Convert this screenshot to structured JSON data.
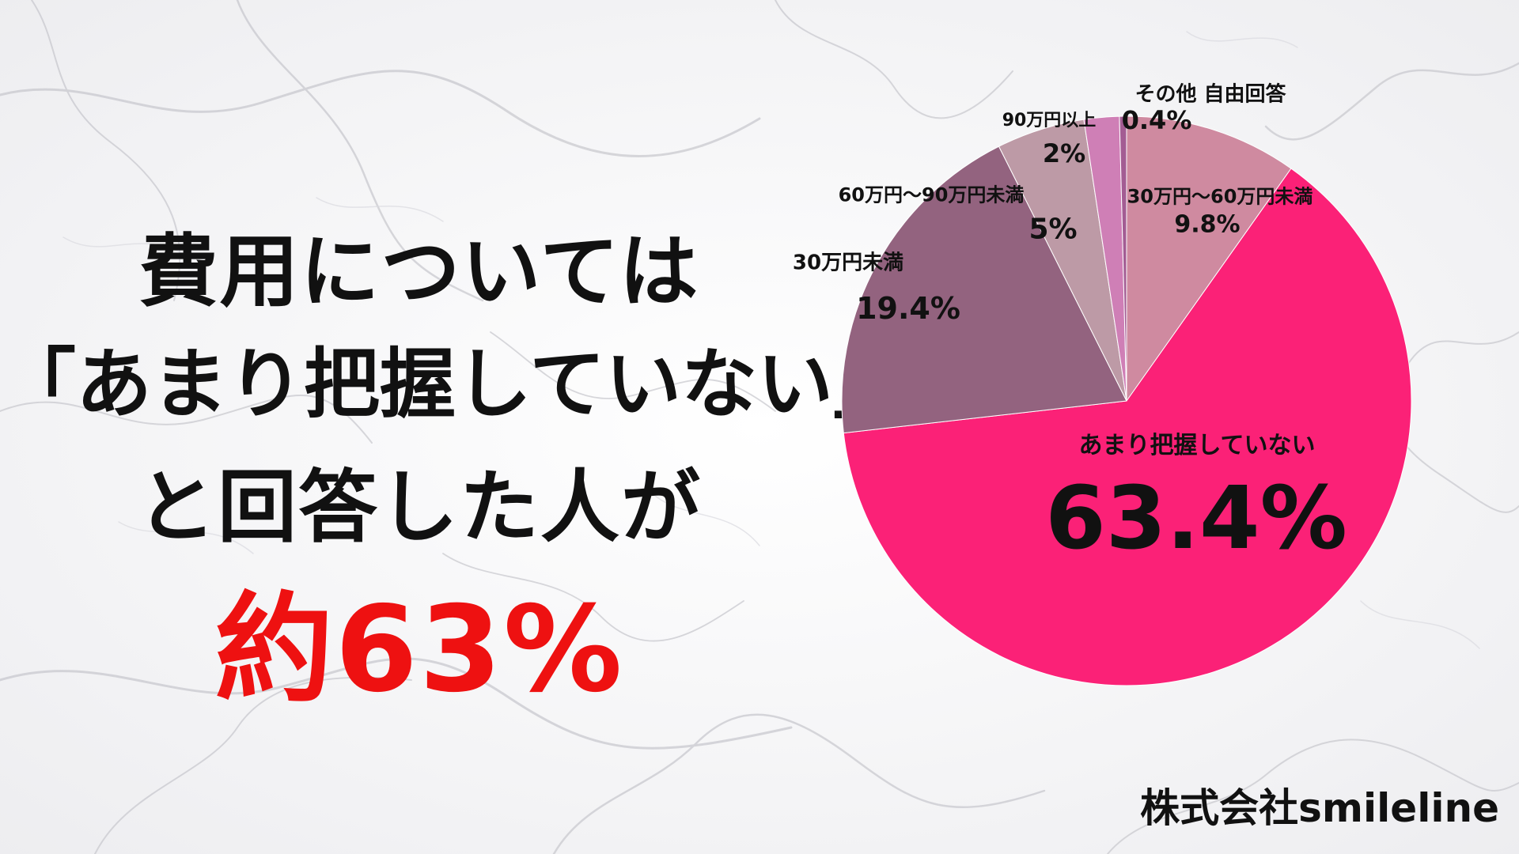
{
  "headline": {
    "line1": "費用については",
    "line2": "「あまり把握していない」",
    "line3": "と回答した人が",
    "highlight": "約63%"
  },
  "company": "株式会社smileline",
  "colors": {
    "highlight": "#ee1111",
    "text": "#111111"
  },
  "chart_data": {
    "type": "pie",
    "start_angle_deg": 0,
    "direction": "clockwise",
    "slices": [
      {
        "label": "30万円〜60万円未満",
        "value": 9.8,
        "value_label": "9.8%",
        "color": "#cf8aa0"
      },
      {
        "label": "あまり把握していない",
        "value": 63.4,
        "value_label": "63.4%",
        "color": "#fb2177"
      },
      {
        "label": "30万円未満",
        "value": 19.4,
        "value_label": "19.4%",
        "color": "#93637f"
      },
      {
        "label": "60万円〜90万円未満",
        "value": 5,
        "value_label": "5%",
        "color": "#bd9aa6"
      },
      {
        "label": "90万円以上",
        "value": 2,
        "value_label": "2%",
        "color": "#cf7fb6"
      },
      {
        "label": "その他 自由回答",
        "value": 0.4,
        "value_label": "0.4%",
        "color": "#a35c93"
      }
    ]
  }
}
